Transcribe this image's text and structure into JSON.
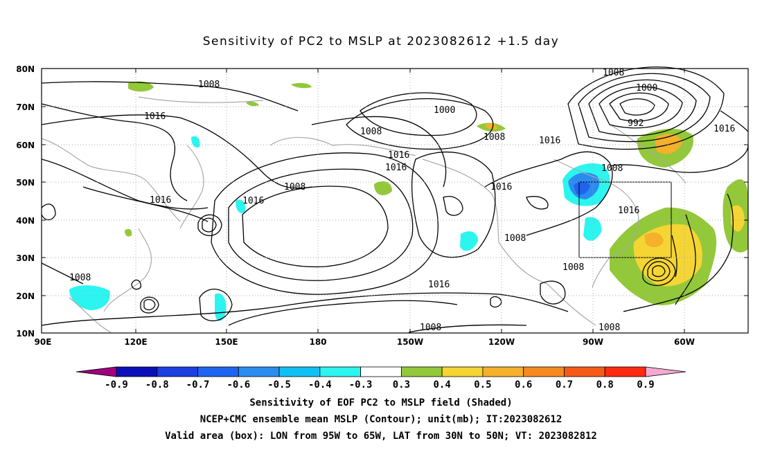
{
  "title": "Sensitivity of PC2 to MSLP at 2023082612 +1.5 day",
  "lat_labels": [
    "80N",
    "70N",
    "60N",
    "50N",
    "40N",
    "30N",
    "20N",
    "10N"
  ],
  "lon_labels": [
    "90E",
    "120E",
    "150E",
    "180",
    "150W",
    "120W",
    "90W",
    "60W"
  ],
  "colorbar": {
    "labels": [
      "-0.9",
      "-0.8",
      "-0.7",
      "-0.6",
      "-0.5",
      "-0.4",
      "-0.3",
      "0.3",
      "0.4",
      "0.5",
      "0.6",
      "0.7",
      "0.8",
      "0.9"
    ],
    "colors": [
      "#a0007e",
      "#0b0fb8",
      "#1b3fe0",
      "#1e64f0",
      "#2b8cf0",
      "#10c0f5",
      "#2cf5f0",
      "#ffffff",
      "#93c83a",
      "#f5d534",
      "#f5b02c",
      "#f58a20",
      "#f55a18",
      "#fd2a12",
      "#f5a8d0"
    ]
  },
  "isobar_labels": {
    "l1008": "1008",
    "l1000": "1000",
    "l992": "992",
    "l1016": "1016"
  },
  "footer": {
    "line1": "Sensitivity of EOF PC2 to MSLP field (Shaded)",
    "line2": "NCEP+CMC ensemble mean MSLP (Contour); unit(mb); IT:2023082612",
    "line3": "Valid area (box): LON from 95W to 65W, LAT from 30N to 50N; VT: 2023082812"
  }
}
